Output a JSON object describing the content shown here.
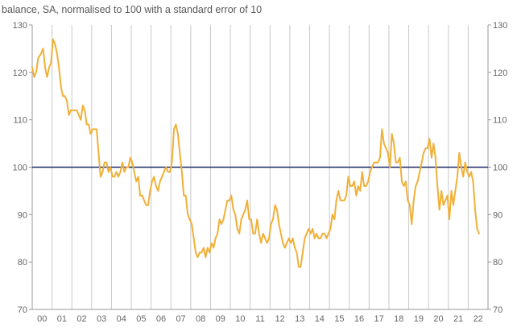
{
  "subtitle": "balance, SA, normalised to 100 with a standard error of 10",
  "chart_data": {
    "type": "line",
    "title": "",
    "subtitle": "balance, SA, normalised to 100 with a standard error of 10",
    "xlabel": "",
    "ylabel": "",
    "ylim": [
      70,
      130
    ],
    "y_ticks": [
      70,
      80,
      90,
      100,
      110,
      120,
      130
    ],
    "x_tick_labels": [
      "00",
      "01",
      "02",
      "03",
      "04",
      "05",
      "06",
      "07",
      "08",
      "09",
      "10",
      "11",
      "12",
      "13",
      "14",
      "15",
      "16",
      "17",
      "18",
      "19",
      "20",
      "21",
      "22"
    ],
    "xlim": [
      2000.0,
      2023.0
    ],
    "grid": "vertical",
    "reference_line": {
      "y": 100,
      "color": "#1f2d6b"
    },
    "series": [
      {
        "color": "#f0b038",
        "points": [
          [
            2000.0,
            121
          ],
          [
            2000.1,
            119
          ],
          [
            2000.2,
            120
          ],
          [
            2000.3,
            123
          ],
          [
            2000.45,
            124
          ],
          [
            2000.55,
            125
          ],
          [
            2000.65,
            121
          ],
          [
            2000.75,
            119
          ],
          [
            2000.85,
            121
          ],
          [
            2000.95,
            122
          ],
          [
            2001.05,
            127
          ],
          [
            2001.15,
            126
          ],
          [
            2001.25,
            124
          ],
          [
            2001.35,
            121
          ],
          [
            2001.45,
            117
          ],
          [
            2001.55,
            115
          ],
          [
            2001.65,
            115
          ],
          [
            2001.75,
            114
          ],
          [
            2001.85,
            111
          ],
          [
            2001.95,
            112
          ],
          [
            2002.05,
            112
          ],
          [
            2002.15,
            112
          ],
          [
            2002.25,
            112
          ],
          [
            2002.35,
            111
          ],
          [
            2002.45,
            110
          ],
          [
            2002.55,
            113
          ],
          [
            2002.65,
            112
          ],
          [
            2002.75,
            109
          ],
          [
            2002.85,
            109
          ],
          [
            2002.95,
            107
          ],
          [
            2003.05,
            108
          ],
          [
            2003.15,
            108
          ],
          [
            2003.25,
            108
          ],
          [
            2003.35,
            103
          ],
          [
            2003.45,
            98
          ],
          [
            2003.55,
            99
          ],
          [
            2003.65,
            101
          ],
          [
            2003.75,
            101
          ],
          [
            2003.85,
            99
          ],
          [
            2003.95,
            100
          ],
          [
            2004.05,
            98
          ],
          [
            2004.15,
            98
          ],
          [
            2004.25,
            99
          ],
          [
            2004.35,
            98
          ],
          [
            2004.45,
            99
          ],
          [
            2004.55,
            101
          ],
          [
            2004.65,
            99
          ],
          [
            2004.75,
            100
          ],
          [
            2004.85,
            100
          ],
          [
            2004.95,
            102
          ],
          [
            2005.05,
            101
          ],
          [
            2005.15,
            99
          ],
          [
            2005.25,
            97
          ],
          [
            2005.35,
            98
          ],
          [
            2005.45,
            94
          ],
          [
            2005.55,
            94
          ],
          [
            2005.65,
            93
          ],
          [
            2005.75,
            92
          ],
          [
            2005.85,
            92
          ],
          [
            2005.95,
            95
          ],
          [
            2006.05,
            97
          ],
          [
            2006.15,
            98
          ],
          [
            2006.25,
            96
          ],
          [
            2006.35,
            95
          ],
          [
            2006.45,
            97
          ],
          [
            2006.55,
            98
          ],
          [
            2006.65,
            99
          ],
          [
            2006.75,
            100
          ],
          [
            2006.85,
            99
          ],
          [
            2006.95,
            99
          ],
          [
            2007.05,
            101
          ],
          [
            2007.15,
            108
          ],
          [
            2007.25,
            109
          ],
          [
            2007.35,
            107
          ],
          [
            2007.45,
            103
          ],
          [
            2007.55,
            99
          ],
          [
            2007.65,
            94
          ],
          [
            2007.75,
            94
          ],
          [
            2007.85,
            90
          ],
          [
            2007.95,
            89
          ],
          [
            2008.05,
            88
          ],
          [
            2008.15,
            85
          ],
          [
            2008.25,
            82
          ],
          [
            2008.35,
            81
          ],
          [
            2008.45,
            82
          ],
          [
            2008.55,
            82
          ],
          [
            2008.65,
            83
          ],
          [
            2008.75,
            81
          ],
          [
            2008.85,
            83
          ],
          [
            2008.95,
            82
          ],
          [
            2009.05,
            84
          ],
          [
            2009.15,
            83
          ],
          [
            2009.25,
            85
          ],
          [
            2009.35,
            86
          ],
          [
            2009.45,
            89
          ],
          [
            2009.55,
            88
          ],
          [
            2009.65,
            89
          ],
          [
            2009.75,
            91
          ],
          [
            2009.85,
            93
          ],
          [
            2009.95,
            93
          ],
          [
            2010.05,
            94
          ],
          [
            2010.15,
            91
          ],
          [
            2010.25,
            90
          ],
          [
            2010.35,
            87
          ],
          [
            2010.45,
            86
          ],
          [
            2010.55,
            89
          ],
          [
            2010.65,
            90
          ],
          [
            2010.75,
            91
          ],
          [
            2010.85,
            93
          ],
          [
            2010.95,
            89
          ],
          [
            2011.05,
            89
          ],
          [
            2011.15,
            86
          ],
          [
            2011.25,
            86
          ],
          [
            2011.35,
            89
          ],
          [
            2011.45,
            86
          ],
          [
            2011.55,
            84
          ],
          [
            2011.65,
            86
          ],
          [
            2011.75,
            85
          ],
          [
            2011.85,
            84
          ],
          [
            2011.95,
            85
          ],
          [
            2012.05,
            88
          ],
          [
            2012.15,
            89
          ],
          [
            2012.25,
            92
          ],
          [
            2012.35,
            91
          ],
          [
            2012.45,
            88
          ],
          [
            2012.55,
            86
          ],
          [
            2012.65,
            84
          ],
          [
            2012.75,
            83
          ],
          [
            2012.85,
            84
          ],
          [
            2012.95,
            85
          ],
          [
            2013.05,
            84
          ],
          [
            2013.15,
            85
          ],
          [
            2013.25,
            83
          ],
          [
            2013.35,
            82
          ],
          [
            2013.45,
            79
          ],
          [
            2013.55,
            79
          ],
          [
            2013.65,
            82
          ],
          [
            2013.75,
            85
          ],
          [
            2013.85,
            86
          ],
          [
            2013.95,
            87
          ],
          [
            2014.05,
            86
          ],
          [
            2014.15,
            87
          ],
          [
            2014.25,
            85
          ],
          [
            2014.35,
            86
          ],
          [
            2014.45,
            85
          ],
          [
            2014.55,
            85
          ],
          [
            2014.65,
            86
          ],
          [
            2014.75,
            86
          ],
          [
            2014.85,
            85
          ],
          [
            2014.95,
            86
          ],
          [
            2015.05,
            87
          ],
          [
            2015.15,
            90
          ],
          [
            2015.25,
            89
          ],
          [
            2015.35,
            93
          ],
          [
            2015.45,
            95
          ],
          [
            2015.55,
            93
          ],
          [
            2015.65,
            93
          ],
          [
            2015.75,
            93
          ],
          [
            2015.85,
            94
          ],
          [
            2015.95,
            98
          ],
          [
            2016.05,
            96
          ],
          [
            2016.15,
            96
          ],
          [
            2016.25,
            97
          ],
          [
            2016.35,
            94
          ],
          [
            2016.45,
            96
          ],
          [
            2016.55,
            95
          ],
          [
            2016.65,
            99
          ],
          [
            2016.75,
            96
          ],
          [
            2016.85,
            96
          ],
          [
            2016.95,
            97
          ],
          [
            2017.05,
            99
          ],
          [
            2017.15,
            100
          ],
          [
            2017.25,
            101
          ],
          [
            2017.35,
            101
          ],
          [
            2017.45,
            101
          ],
          [
            2017.55,
            102
          ],
          [
            2017.65,
            108
          ],
          [
            2017.75,
            105
          ],
          [
            2017.85,
            104
          ],
          [
            2017.95,
            103
          ],
          [
            2018.05,
            100
          ],
          [
            2018.15,
            107
          ],
          [
            2018.25,
            105
          ],
          [
            2018.35,
            101
          ],
          [
            2018.45,
            101
          ],
          [
            2018.55,
            102
          ],
          [
            2018.65,
            97
          ],
          [
            2018.75,
            96
          ],
          [
            2018.85,
            97
          ],
          [
            2018.95,
            93
          ],
          [
            2019.05,
            92
          ],
          [
            2019.15,
            88
          ],
          [
            2019.25,
            93
          ],
          [
            2019.35,
            96
          ],
          [
            2019.45,
            97
          ],
          [
            2019.55,
            99
          ],
          [
            2019.65,
            101
          ],
          [
            2019.75,
            103
          ],
          [
            2019.85,
            104
          ],
          [
            2019.95,
            104
          ],
          [
            2020.05,
            106
          ],
          [
            2020.15,
            102
          ],
          [
            2020.25,
            105
          ],
          [
            2020.35,
            102
          ],
          [
            2020.45,
            96
          ],
          [
            2020.55,
            91
          ],
          [
            2020.65,
            95
          ],
          [
            2020.75,
            92
          ],
          [
            2020.85,
            93
          ],
          [
            2020.95,
            94
          ],
          [
            2021.05,
            89
          ],
          [
            2021.15,
            95
          ],
          [
            2021.25,
            92
          ],
          [
            2021.35,
            95
          ],
          [
            2021.45,
            98
          ],
          [
            2021.55,
            103
          ],
          [
            2021.65,
            100
          ],
          [
            2021.75,
            98
          ],
          [
            2021.85,
            101
          ],
          [
            2021.95,
            99
          ],
          [
            2022.05,
            98
          ],
          [
            2022.15,
            99
          ],
          [
            2022.25,
            97
          ],
          [
            2022.35,
            91
          ],
          [
            2022.45,
            87
          ],
          [
            2022.55,
            86
          ]
        ]
      }
    ]
  }
}
